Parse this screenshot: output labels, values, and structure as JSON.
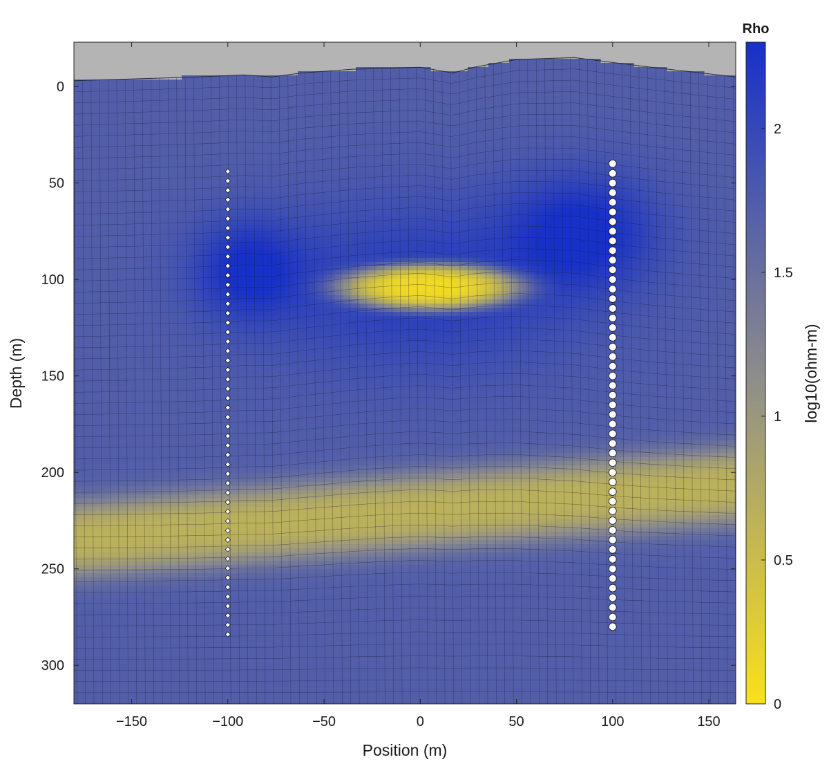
{
  "chart_data": {
    "type": "heatmap",
    "title": "",
    "xlabel": "Position (m)",
    "ylabel": "Depth (m)",
    "xlim": [
      -180,
      164
    ],
    "ylim": [
      320,
      -23
    ],
    "x_ticks": [
      -150,
      -100,
      -50,
      0,
      50,
      100,
      150
    ],
    "y_ticks": [
      0,
      50,
      100,
      150,
      200,
      250,
      300
    ],
    "grid": false,
    "mesh": "quadrilateral finite-element mesh drawn over the model",
    "background_color": "#b4b4b4",
    "surface_topography": [
      {
        "x": -180,
        "depth": -3
      },
      {
        "x": -115,
        "depth": -5
      },
      {
        "x": -92,
        "depth": -6
      },
      {
        "x": -77,
        "depth": -5
      },
      {
        "x": -62,
        "depth": -7
      },
      {
        "x": -35,
        "depth": -9
      },
      {
        "x": 0,
        "depth": -10
      },
      {
        "x": 17,
        "depth": -7
      },
      {
        "x": 28,
        "depth": -10
      },
      {
        "x": 50,
        "depth": -14
      },
      {
        "x": 80,
        "depth": -15
      },
      {
        "x": 120,
        "depth": -10
      },
      {
        "x": 164,
        "depth": -5
      }
    ],
    "colorbar": {
      "title": "Rho",
      "label": "log10(ohm-m)",
      "range": [
        0,
        2.3
      ],
      "ticks": [
        0,
        0.5,
        1,
        1.5,
        2
      ],
      "colors": [
        "#f9e11a",
        "#8c8c8c",
        "#1730c8"
      ]
    },
    "background_value": 1.72,
    "features": [
      {
        "name": "",
        "kind": "conductive lens",
        "x_center": 5,
        "depth_center": 104,
        "x_half_width": 48,
        "depth_half_width": 12,
        "value": 0.1
      },
      {
        "name": "",
        "kind": "conductive layer",
        "depth_start_left": 215,
        "depth_start_right": 187,
        "thickness": 40,
        "value": 0.6
      },
      {
        "name": "",
        "kind": "resistive halo",
        "x_center": 0,
        "depth_center": 104,
        "x_half_width": 85,
        "depth_half_width": 45,
        "value": 2.15
      },
      {
        "name": "",
        "kind": "resistive body",
        "x_center": -90,
        "depth_center": 95,
        "value": 2.25
      },
      {
        "name": "",
        "kind": "resistive body",
        "x_center": 85,
        "depth_center": 75,
        "value": 2.3
      }
    ],
    "boreholes": [
      {
        "x": -100,
        "depth_top": 44,
        "depth_bottom": 284,
        "marker": "diamond",
        "count": 50
      },
      {
        "x": 100,
        "depth_top": 40,
        "depth_bottom": 280,
        "marker": "circle",
        "count": 49
      }
    ]
  }
}
